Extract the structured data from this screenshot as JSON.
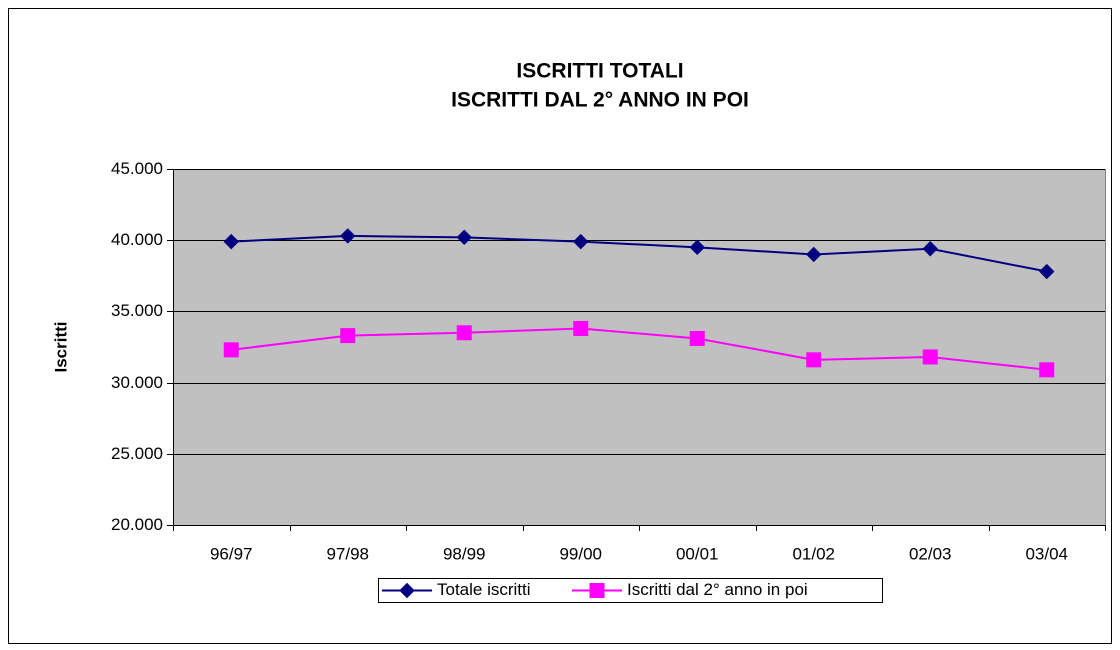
{
  "chart_data": {
    "type": "line",
    "title": "ISCRITTI TOTALI",
    "subtitle": "ISCRITTI DAL 2° ANNO IN POI",
    "y_label": "Iscritti",
    "categories": [
      "96/97",
      "97/98",
      "98/99",
      "99/00",
      "00/01",
      "01/02",
      "02/03",
      "03/04"
    ],
    "series": [
      {
        "name": "Totale iscritti",
        "color": "#000080",
        "marker": "diamond",
        "values": [
          39900,
          40300,
          40200,
          39900,
          39500,
          39000,
          39400,
          37800
        ]
      },
      {
        "name": "Iscritti dal 2° anno in poi",
        "color": "#ff00ff",
        "marker": "square",
        "values": [
          32300,
          33300,
          33500,
          33800,
          33100,
          31600,
          31800,
          30900
        ]
      }
    ],
    "ylim": [
      20000,
      45000
    ],
    "yticks": [
      {
        "value": 20000,
        "label": "20.000"
      },
      {
        "value": 25000,
        "label": "25.000"
      },
      {
        "value": 30000,
        "label": "30.000"
      },
      {
        "value": 35000,
        "label": "35.000"
      },
      {
        "value": 40000,
        "label": "40.000"
      },
      {
        "value": 45000,
        "label": "45.000"
      }
    ],
    "grid": true,
    "legend": "bottom",
    "plot_background": "#c0c0c0"
  }
}
